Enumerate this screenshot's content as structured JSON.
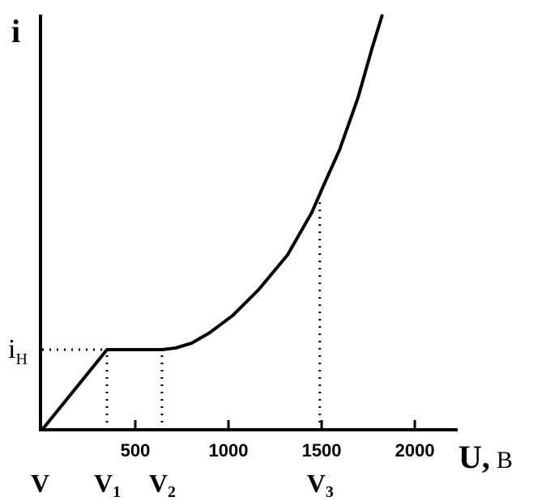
{
  "chart_data": {
    "type": "line",
    "x": [
      0,
      348,
      643,
      717,
      804,
      900,
      1022,
      1161,
      1317,
      1448,
      1513,
      1596,
      1696,
      1770,
      1826
    ],
    "series": [
      {
        "color": "#000000",
        "values": [
          0,
          19.3,
          19.3,
          19.7,
          20.9,
          23.4,
          27.5,
          33.7,
          42.1,
          52.4,
          59.1,
          67.4,
          80.1,
          91.8,
          100
        ]
      }
    ],
    "xlim": [
      0,
      2230
    ],
    "ylim": [
      0,
      100
    ],
    "xticks": [
      500,
      1000,
      1500,
      2000
    ],
    "y_label": "i",
    "x_label": "U,",
    "x_unit": "В",
    "origin_label": "V",
    "level": {
      "label": "i",
      "sub": "Н",
      "y": 19.3
    },
    "markers": [
      {
        "label": "V",
        "sub": "1",
        "x": 348,
        "y": 19.3
      },
      {
        "label": "V",
        "sub": "2",
        "x": 643,
        "y": 19.3
      },
      {
        "label": "V",
        "sub": "3",
        "x": 1490,
        "y": 55
      }
    ]
  }
}
